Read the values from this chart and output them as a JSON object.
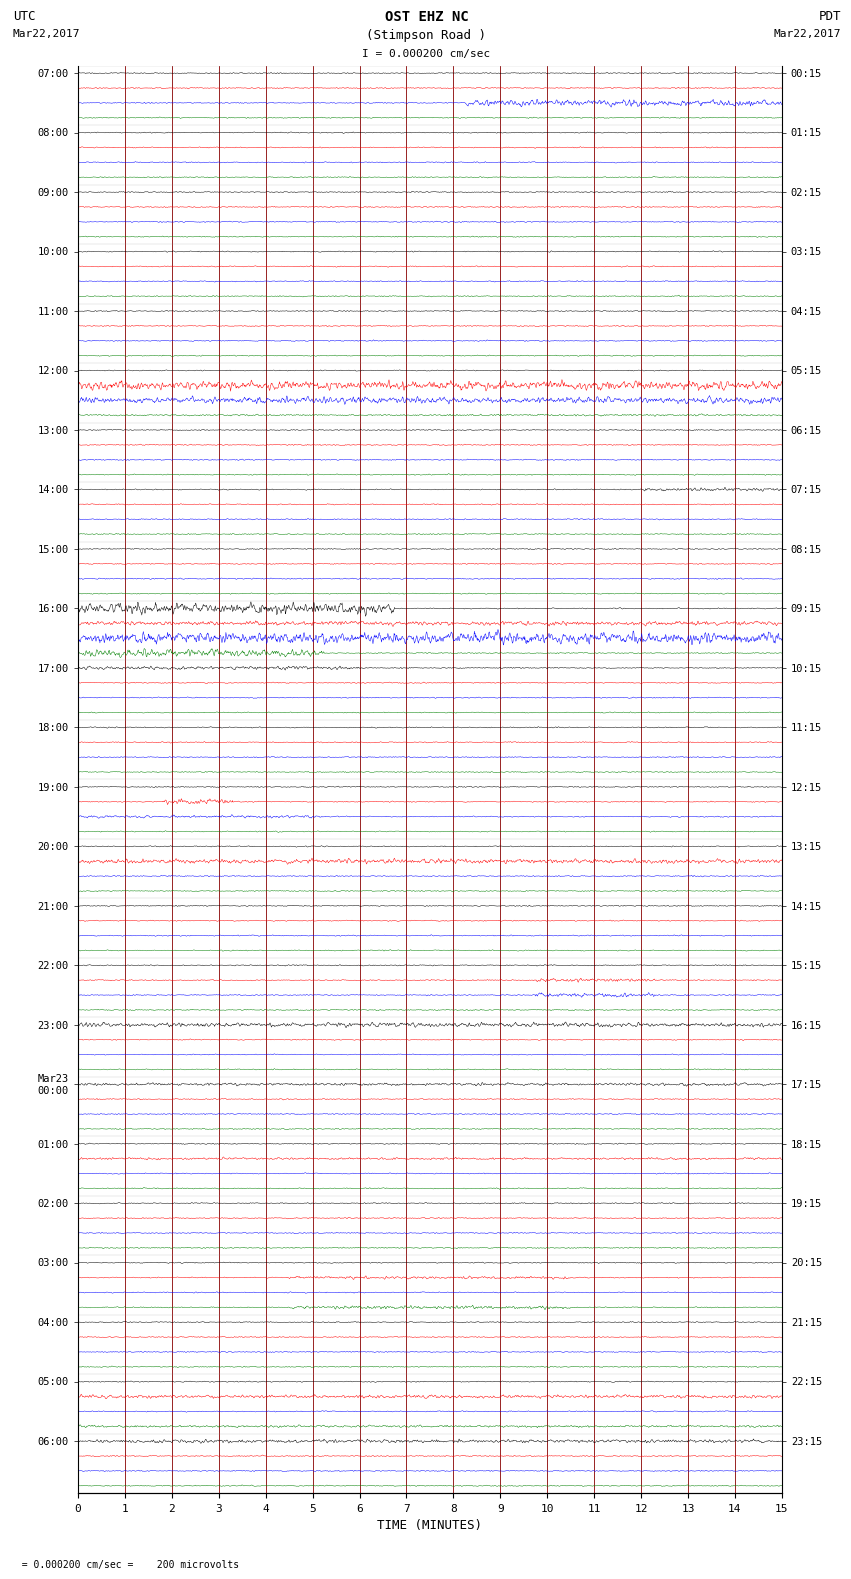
{
  "title_line1": "OST EHZ NC",
  "title_line2": "(Stimpson Road )",
  "scale_label": "I = 0.000200 cm/sec",
  "bottom_label": "TIME (MINUTES)",
  "bottom_note": "= 0.000200 cm/sec =    200 microvolts",
  "left_label": "UTC",
  "left_date": "Mar22,2017",
  "right_label": "PDT",
  "right_date": "Mar22,2017",
  "trace_colors": [
    "black",
    "red",
    "blue",
    "green"
  ],
  "background_color": "white",
  "grid_color": "#880000",
  "num_rows": 96,
  "minutes": 15,
  "fig_width": 8.5,
  "fig_height": 16.13,
  "dpi": 100,
  "base_noise": 0.06,
  "utc_labels": [
    [
      "07:00",
      0
    ],
    [
      "08:00",
      4
    ],
    [
      "09:00",
      8
    ],
    [
      "10:00",
      12
    ],
    [
      "11:00",
      16
    ],
    [
      "12:00",
      20
    ],
    [
      "13:00",
      24
    ],
    [
      "14:00",
      28
    ],
    [
      "15:00",
      32
    ],
    [
      "16:00",
      36
    ],
    [
      "17:00",
      40
    ],
    [
      "18:00",
      44
    ],
    [
      "19:00",
      48
    ],
    [
      "20:00",
      52
    ],
    [
      "21:00",
      56
    ],
    [
      "22:00",
      60
    ],
    [
      "23:00",
      64
    ],
    [
      "Mar23\n00:00",
      68
    ],
    [
      "01:00",
      72
    ],
    [
      "02:00",
      76
    ],
    [
      "03:00",
      80
    ],
    [
      "04:00",
      84
    ],
    [
      "05:00",
      88
    ],
    [
      "06:00",
      92
    ]
  ],
  "pdt_labels": [
    [
      "00:15",
      0
    ],
    [
      "01:15",
      4
    ],
    [
      "02:15",
      8
    ],
    [
      "03:15",
      12
    ],
    [
      "04:15",
      16
    ],
    [
      "05:15",
      20
    ],
    [
      "06:15",
      24
    ],
    [
      "07:15",
      28
    ],
    [
      "08:15",
      32
    ],
    [
      "09:15",
      36
    ],
    [
      "10:15",
      40
    ],
    [
      "11:15",
      44
    ],
    [
      "12:15",
      48
    ],
    [
      "13:15",
      52
    ],
    [
      "14:15",
      56
    ],
    [
      "15:15",
      60
    ],
    [
      "16:15",
      64
    ],
    [
      "17:15",
      68
    ],
    [
      "18:15",
      72
    ],
    [
      "19:15",
      76
    ],
    [
      "20:15",
      80
    ],
    [
      "21:15",
      84
    ],
    [
      "22:15",
      88
    ],
    [
      "23:15",
      92
    ]
  ],
  "active_traces": {
    "0_2": {
      "amp": 3.0,
      "burst": [
        0.55,
        1.0
      ]
    },
    "5_0": {
      "amp": 0.5,
      "burst": [
        0.8,
        1.0
      ]
    },
    "5_1": {
      "amp": 4.0,
      "burst": [
        0.0,
        1.0
      ]
    },
    "5_2": {
      "amp": 3.0,
      "burst": [
        0.0,
        1.0
      ]
    },
    "5_3": {
      "amp": 0.8,
      "burst": [
        0.0,
        1.0
      ]
    },
    "7_0": {
      "amp": 1.5,
      "burst": [
        0.8,
        1.0
      ]
    },
    "9_0": {
      "amp": 5.0,
      "burst": [
        0.0,
        0.45
      ]
    },
    "9_1": {
      "amp": 2.0,
      "burst": [
        0.0,
        1.0
      ]
    },
    "9_2": {
      "amp": 5.5,
      "burst": [
        0.0,
        1.0
      ]
    },
    "9_3": {
      "amp": 3.5,
      "burst": [
        0.0,
        0.35
      ]
    },
    "10_0": {
      "amp": 1.5,
      "burst": [
        0.0,
        0.4
      ]
    },
    "12_1": {
      "amp": 2.5,
      "burst": [
        0.12,
        0.22
      ]
    },
    "12_2": {
      "amp": 1.2,
      "burst": [
        0.0,
        0.35
      ]
    },
    "13_1": {
      "amp": 2.0,
      "burst": [
        0.0,
        1.0
      ]
    },
    "15_1": {
      "amp": 1.5,
      "burst": [
        0.65,
        0.82
      ]
    },
    "15_2": {
      "amp": 1.8,
      "burst": [
        0.65,
        0.82
      ]
    },
    "16_0": {
      "amp": 2.0,
      "burst": [
        0.0,
        1.0
      ]
    },
    "17_0": {
      "amp": 1.2,
      "burst": [
        0.0,
        1.0
      ]
    },
    "18_1": {
      "amp": 1.0,
      "burst": [
        0.0,
        1.0
      ]
    },
    "20_1": {
      "amp": 1.2,
      "burst": [
        0.3,
        0.7
      ]
    },
    "20_3": {
      "amp": 1.5,
      "burst": [
        0.3,
        0.7
      ]
    },
    "22_1": {
      "amp": 1.5,
      "burst": [
        0.0,
        1.0
      ]
    },
    "22_3": {
      "amp": 1.0,
      "burst": [
        0.0,
        1.0
      ]
    },
    "23_0": {
      "amp": 1.5,
      "burst": [
        0.0,
        1.0
      ]
    },
    "28_2": {
      "amp": 3.5,
      "burst": [
        0.85,
        1.0
      ]
    },
    "33_1": {
      "amp": 1.5,
      "burst": [
        0.0,
        1.0
      ]
    },
    "36_2": {
      "amp": 2.5,
      "burst": [
        0.8,
        1.0
      ]
    }
  }
}
